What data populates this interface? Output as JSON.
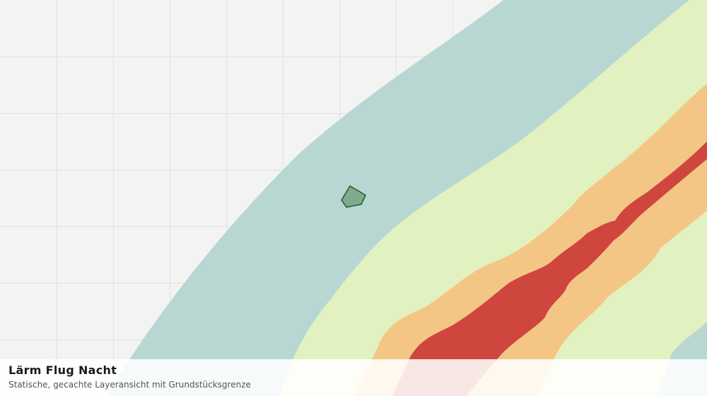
{
  "header": {
    "title": "Lärm Flug Nacht",
    "subtitle": "Statische, gecachte Layeransicht mit Grundstücksgrenze"
  }
}
